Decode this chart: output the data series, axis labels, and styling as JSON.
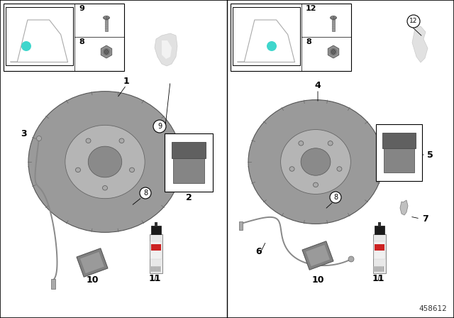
{
  "diagram_number": "458612",
  "bg": "#ffffff",
  "teal": "#3fd6cc",
  "disk_outer": "#9a9a9a",
  "disk_mid": "#b5b5b5",
  "disk_inner": "#c8c8c8",
  "disk_hub": "#8a8a8a",
  "disk_edge": "#555555",
  "pad_color": "#707070",
  "wire_color": "#888888",
  "ghost_color": "#d8d8d8",
  "packet_color": "#808080",
  "can_body": "#e8e8e8",
  "can_cap": "#1a1a1a",
  "can_red": "#cc2222"
}
